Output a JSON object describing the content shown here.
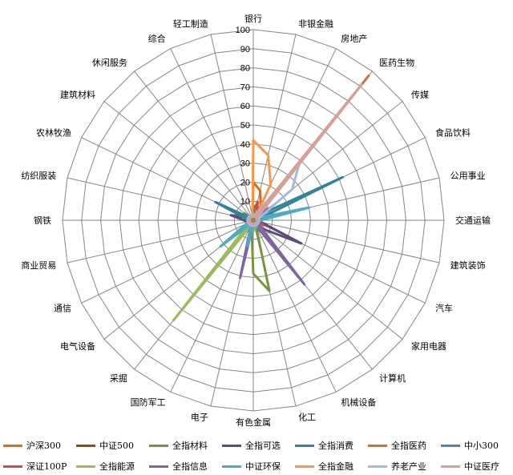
{
  "chart_data": {
    "type": "radar",
    "title": "",
    "rlim": [
      0,
      100
    ],
    "rticks": [
      0,
      10,
      20,
      30,
      40,
      50,
      60,
      70,
      80,
      90,
      100
    ],
    "grid": true,
    "legend_position": "bottom",
    "categories": [
      "银行",
      "非银金融",
      "房地产",
      "医药生物",
      "传媒",
      "食品饮料",
      "公用事业",
      "交通运输",
      "建筑装饰",
      "汽车",
      "家用电器",
      "计算机",
      "机械设备",
      "化工",
      "有色金属",
      "电子",
      "国防军工",
      "采掘",
      "电气设备",
      "通信",
      "商业贸易",
      "钢铁",
      "纺织服装",
      "农林牧渔",
      "建筑材料",
      "休闲服务",
      "综合",
      "轻工制造"
    ],
    "series": [
      {
        "name": "沪深300",
        "color": "#e36c09",
        "values": [
          20,
          16,
          9,
          4,
          2,
          2,
          2,
          2,
          2,
          2,
          2,
          2,
          2,
          2,
          2,
          2,
          2,
          2,
          2,
          2,
          2,
          2,
          2,
          2,
          2,
          2,
          2,
          2
        ]
      },
      {
        "name": "中证500",
        "color": "#984807",
        "values": [
          5,
          4,
          3,
          3,
          2,
          2,
          2,
          2,
          2,
          2,
          2,
          2,
          2,
          2,
          3,
          2,
          2,
          2,
          2,
          2,
          2,
          3,
          2,
          2,
          3,
          2,
          2,
          3
        ]
      },
      {
        "name": "全指材料",
        "color": "#77933c",
        "values": [
          8,
          3,
          2,
          1,
          1,
          1,
          1,
          1,
          2,
          3,
          3,
          3,
          3,
          38,
          28,
          4,
          3,
          3,
          2,
          2,
          2,
          5,
          3,
          2,
          6,
          2,
          2,
          2
        ]
      },
      {
        "name": "全指可选",
        "color": "#604a7b",
        "values": [
          2,
          2,
          2,
          2,
          3,
          3,
          2,
          2,
          4,
          28,
          8,
          3,
          3,
          3,
          2,
          2,
          2,
          2,
          2,
          2,
          3,
          5,
          12,
          3,
          2,
          3,
          2,
          3
        ]
      },
      {
        "name": "全指消费",
        "color": "#31849b",
        "values": [
          2,
          2,
          2,
          4,
          5,
          52,
          3,
          2,
          2,
          2,
          3,
          2,
          2,
          2,
          2,
          2,
          2,
          2,
          2,
          2,
          3,
          2,
          4,
          22,
          2,
          3,
          2,
          3
        ]
      },
      {
        "name": "全指医药",
        "color": "#c87533",
        "values": [
          2,
          2,
          2,
          97,
          3,
          2,
          2,
          2,
          2,
          2,
          2,
          2,
          2,
          2,
          2,
          2,
          2,
          2,
          2,
          2,
          2,
          2,
          2,
          2,
          2,
          2,
          2,
          2
        ]
      },
      {
        "name": "中小300",
        "color": "#4f81bd",
        "values": [
          3,
          3,
          3,
          3,
          3,
          3,
          3,
          3,
          3,
          3,
          3,
          3,
          3,
          3,
          3,
          3,
          3,
          3,
          3,
          3,
          3,
          3,
          3,
          3,
          3,
          3,
          3,
          3
        ]
      },
      {
        "name": "深证100P",
        "color": "#c0504d",
        "values": [
          4,
          10,
          5,
          4,
          3,
          2,
          2,
          2,
          3,
          6,
          3,
          3,
          3,
          3,
          3,
          2,
          2,
          2,
          2,
          2,
          2,
          2,
          2,
          2,
          2,
          2,
          2,
          2
        ]
      },
      {
        "name": "全指能源",
        "color": "#9bbb59",
        "values": [
          2,
          2,
          2,
          2,
          2,
          2,
          3,
          2,
          2,
          2,
          2,
          2,
          2,
          4,
          6,
          3,
          3,
          67,
          3,
          2,
          2,
          3,
          2,
          2,
          2,
          2,
          2,
          2
        ]
      },
      {
        "name": "全指信息",
        "color": "#8064a2",
        "values": [
          2,
          2,
          2,
          3,
          10,
          2,
          2,
          2,
          2,
          3,
          4,
          43,
          3,
          2,
          2,
          31,
          3,
          2,
          3,
          4,
          3,
          2,
          2,
          2,
          2,
          2,
          2,
          2
        ]
      },
      {
        "name": "中证环保",
        "color": "#4bacc6",
        "values": [
          2,
          2,
          2,
          2,
          2,
          3,
          30,
          4,
          3,
          3,
          3,
          3,
          4,
          3,
          3,
          14,
          3,
          3,
          22,
          4,
          3,
          2,
          2,
          2,
          3,
          2,
          2,
          2
        ]
      },
      {
        "name": "全指金融",
        "color": "#f79646",
        "values": [
          42,
          35,
          21,
          2,
          2,
          2,
          2,
          2,
          2,
          2,
          2,
          2,
          2,
          2,
          2,
          2,
          2,
          2,
          2,
          2,
          2,
          2,
          2,
          2,
          2,
          2,
          2,
          2
        ]
      },
      {
        "name": "养老产业",
        "color": "#a5b9da",
        "values": [
          3,
          3,
          4,
          39,
          26,
          4,
          3,
          3,
          3,
          3,
          3,
          3,
          3,
          3,
          3,
          3,
          3,
          3,
          3,
          3,
          3,
          3,
          3,
          3,
          3,
          3,
          3,
          3
        ]
      },
      {
        "name": "中证医疗",
        "color": "#d99e95",
        "values": [
          2,
          2,
          2,
          91,
          3,
          2,
          2,
          2,
          2,
          2,
          2,
          2,
          2,
          2,
          2,
          2,
          2,
          2,
          2,
          2,
          2,
          2,
          2,
          2,
          2,
          2,
          2,
          2
        ]
      }
    ]
  }
}
